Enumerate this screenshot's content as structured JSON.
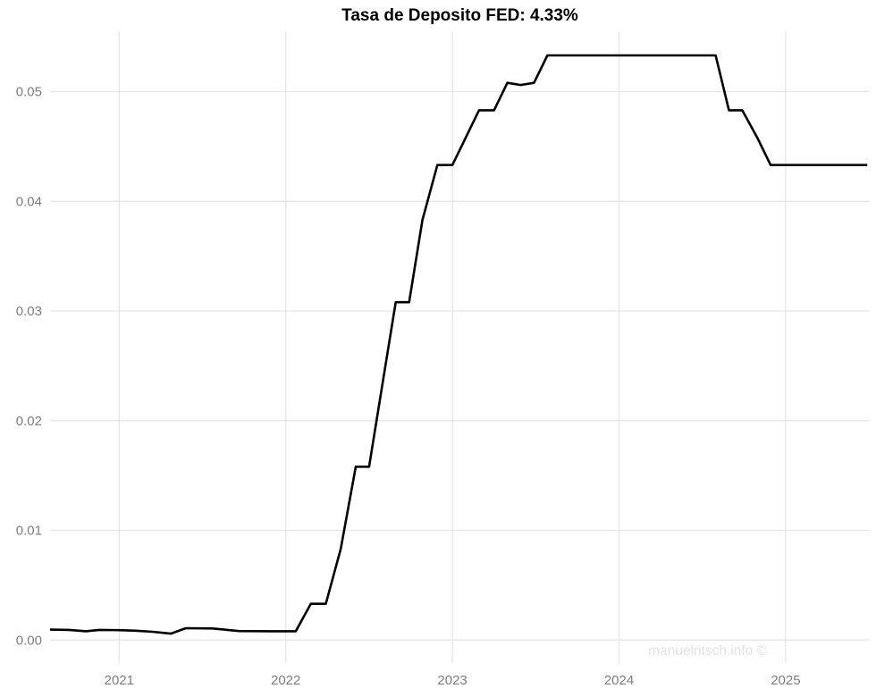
{
  "watermark": "manuelritsch.info ©",
  "chart_data": {
    "type": "line",
    "title": "Tasa de Deposito FED: 4.33%",
    "xlabel": "",
    "ylabel": "",
    "grid": "major-only",
    "legend": "none",
    "x_axis": {
      "ticks": [
        2021,
        2022,
        2023,
        2024,
        2025
      ],
      "range": [
        2020.585,
        2025.505
      ]
    },
    "y_axis": {
      "ticks": [
        0,
        0.01,
        0.02,
        0.03,
        0.04,
        0.05
      ],
      "tick_labels": [
        "0.00",
        "0.01",
        "0.02",
        "0.03",
        "0.04",
        "0.05"
      ],
      "range": [
        -0.0021,
        0.0555
      ]
    },
    "series": [
      {
        "name": "Tasa de Deposito FED",
        "points": [
          [
            2020.585,
            0.00095
          ],
          [
            2020.7,
            0.00092
          ],
          [
            2020.8,
            0.0008
          ],
          [
            2020.88,
            0.00092
          ],
          [
            2021.0,
            0.0009
          ],
          [
            2021.1,
            0.00085
          ],
          [
            2021.2,
            0.00075
          ],
          [
            2021.31,
            0.00058
          ],
          [
            2021.4,
            0.00108
          ],
          [
            2021.56,
            0.00105
          ],
          [
            2021.72,
            0.00082
          ],
          [
            2021.92,
            0.0008
          ],
          [
            2022.06,
            0.0008
          ],
          [
            2022.15,
            0.0033
          ],
          [
            2022.24,
            0.0033
          ],
          [
            2022.33,
            0.0083
          ],
          [
            2022.42,
            0.0158
          ],
          [
            2022.5,
            0.0158
          ],
          [
            2022.58,
            0.0233
          ],
          [
            2022.66,
            0.0308
          ],
          [
            2022.74,
            0.0308
          ],
          [
            2022.82,
            0.0383
          ],
          [
            2022.91,
            0.0433
          ],
          [
            2023.0,
            0.0433
          ],
          [
            2023.08,
            0.0458
          ],
          [
            2023.16,
            0.0483
          ],
          [
            2023.25,
            0.0483
          ],
          [
            2023.33,
            0.0508
          ],
          [
            2023.41,
            0.0506
          ],
          [
            2023.49,
            0.0508
          ],
          [
            2023.57,
            0.0533
          ],
          [
            2024.58,
            0.0533
          ],
          [
            2024.66,
            0.0483
          ],
          [
            2024.74,
            0.0483
          ],
          [
            2024.83,
            0.0458
          ],
          [
            2024.91,
            0.0433
          ],
          [
            2025.49,
            0.0433
          ]
        ]
      }
    ],
    "colors": {
      "line": "#000000",
      "grid": "#e6e6e6",
      "tick_label": "#7d7d7d",
      "title": "#000000",
      "watermark": "#e2e2e2",
      "background": "#ffffff"
    }
  }
}
